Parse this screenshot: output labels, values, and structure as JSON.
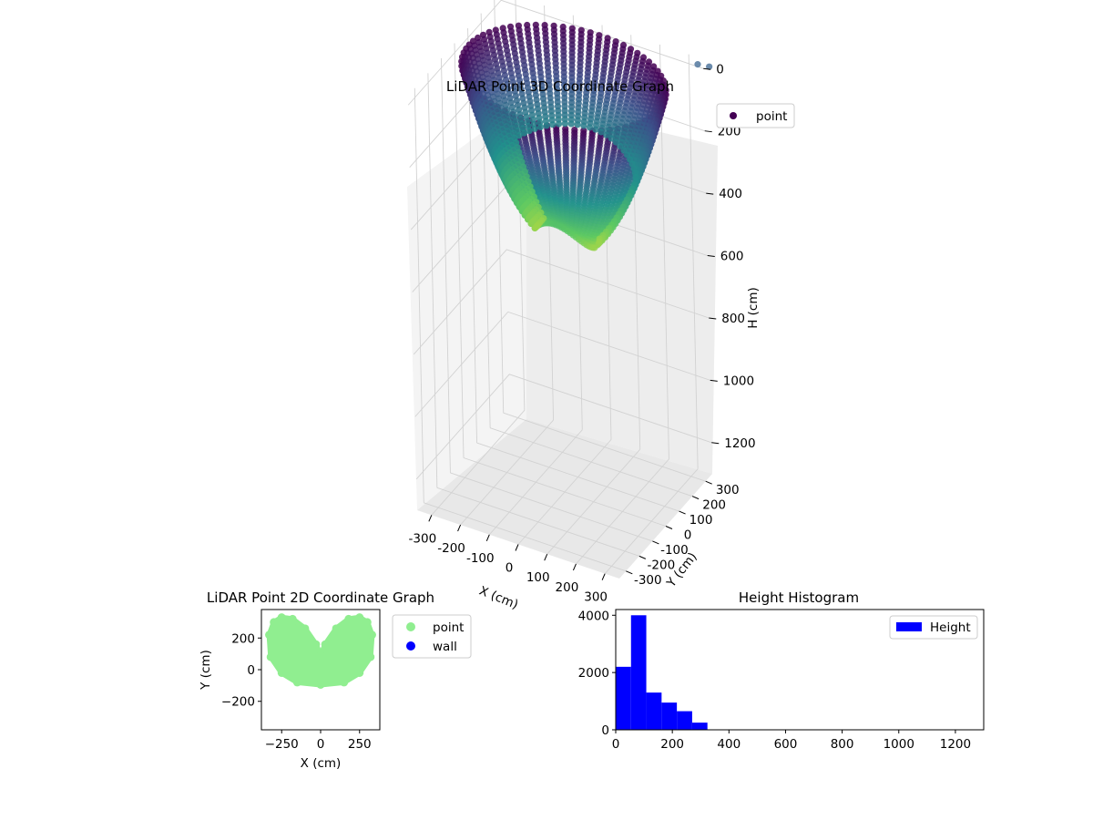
{
  "chart_data": [
    {
      "type": "scatter",
      "title": "LiDAR Point 3D Coordinate Graph",
      "xlabel": "X (cm)",
      "ylabel": "Y (cm)",
      "zlabel": "H (cm)",
      "xticks": [
        -300,
        -200,
        -100,
        0,
        100,
        200,
        300
      ],
      "yticks": [
        -300,
        -200,
        -100,
        0,
        100,
        200,
        300
      ],
      "zticks": [
        0,
        200,
        400,
        600,
        800,
        1000,
        1200
      ],
      "xlim": [
        -350,
        350
      ],
      "ylim": [
        -350,
        350
      ],
      "zlim": [
        1300,
        -30
      ],
      "z_inverted": true,
      "legend": {
        "position": "top-right",
        "entries": [
          "point"
        ]
      },
      "colormap": "viridis",
      "series": [
        {
          "name": "point",
          "description_shape": "bowl of points, radius ~330 cm, height 0-470 cm, colored by height",
          "sample_points": [
            {
              "x": -300,
              "y": 200,
              "h": 40
            },
            {
              "x": -250,
              "y": 280,
              "h": 20
            },
            {
              "x": -100,
              "y": 320,
              "h": 30
            },
            {
              "x": 100,
              "y": 320,
              "h": 30
            },
            {
              "x": 250,
              "y": 250,
              "h": 60
            },
            {
              "x": 300,
              "y": 100,
              "h": 100
            },
            {
              "x": -200,
              "y": 0,
              "h": 280
            },
            {
              "x": 0,
              "y": -50,
              "h": 420
            },
            {
              "x": 100,
              "y": -80,
              "h": 460
            },
            {
              "x": 200,
              "y": 50,
              "h": 360
            }
          ],
          "outliers": [
            {
              "x": 340,
              "y": 330,
              "h": -20
            },
            {
              "x": 380,
              "y": 330,
              "h": -25
            }
          ]
        }
      ]
    },
    {
      "type": "scatter",
      "title": "LiDAR Point 2D Coordinate Graph",
      "xlabel": "X (cm)",
      "ylabel": "Y (cm)",
      "xticks": [
        -250,
        0,
        250
      ],
      "yticks": [
        -200,
        0,
        200
      ],
      "xlim": [
        -380,
        380
      ],
      "ylim": [
        -380,
        380
      ],
      "grid": false,
      "legend": {
        "position": "outside-right",
        "entries": [
          "point",
          "wall"
        ]
      },
      "series": [
        {
          "name": "point",
          "color": "#90ee90",
          "outline_points": [
            [
              -330,
              220
            ],
            [
              -300,
              300
            ],
            [
              -250,
              330
            ],
            [
              -180,
              320
            ],
            [
              -100,
              260
            ],
            [
              -30,
              160
            ],
            [
              0,
              90
            ],
            [
              30,
              160
            ],
            [
              100,
              260
            ],
            [
              180,
              320
            ],
            [
              250,
              330
            ],
            [
              300,
              300
            ],
            [
              330,
              220
            ],
            [
              320,
              80
            ],
            [
              250,
              -20
            ],
            [
              150,
              -80
            ],
            [
              0,
              -95
            ],
            [
              -150,
              -80
            ],
            [
              -250,
              -20
            ],
            [
              -320,
              80
            ]
          ]
        },
        {
          "name": "wall",
          "color": "#0000ff",
          "points": []
        }
      ]
    },
    {
      "type": "bar",
      "title": "Height Histogram",
      "xlabel": "",
      "ylabel": "",
      "xticks": [
        0,
        200,
        400,
        600,
        800,
        1000,
        1200
      ],
      "yticks": [
        0,
        2000,
        4000
      ],
      "xlim": [
        0,
        1300
      ],
      "ylim": [
        0,
        4200
      ],
      "grid": false,
      "legend": {
        "position": "top-right",
        "entries": [
          "Height"
        ]
      },
      "series": [
        {
          "name": "Height",
          "color": "#0000ff",
          "bin_edges": [
            0,
            54,
            108,
            162,
            216,
            270,
            324
          ],
          "values": [
            2200,
            4000,
            1300,
            950,
            650,
            250
          ]
        }
      ]
    }
  ]
}
